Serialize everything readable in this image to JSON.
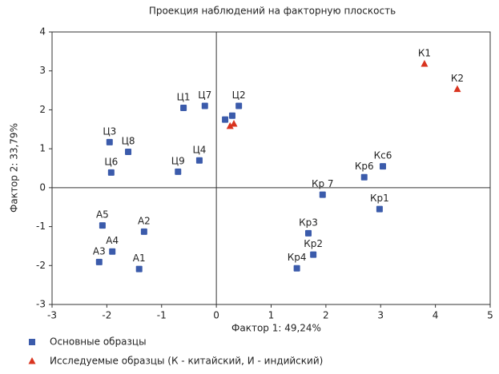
{
  "chart_data": {
    "type": "scatter",
    "title": "Проекция наблюдений на факторную плоскость",
    "x_label": "Фактор 1: 49,24%",
    "y_label": "Фактор 2: 33,79%",
    "xlim": [
      -3,
      5
    ],
    "ylim": [
      -3,
      4
    ],
    "xticks": [
      -3,
      -2,
      -1,
      0,
      1,
      2,
      3,
      4,
      5
    ],
    "yticks": [
      -3,
      -2,
      -1,
      0,
      1,
      2,
      3,
      4
    ],
    "series": [
      {
        "name": "Основные образцы",
        "color": "#3b5bab",
        "marker": "square",
        "x": [
          -0.6,
          -0.21,
          0.41,
          0.16,
          0.29,
          -1.95,
          -1.61,
          -1.92,
          -0.7,
          -0.31,
          2.7,
          3.04,
          1.94,
          2.98,
          1.68,
          1.77,
          1.47,
          -2.08,
          -1.32,
          -1.9,
          -2.14,
          -1.41
        ],
        "values": [
          2.05,
          2.1,
          2.1,
          1.75,
          1.85,
          1.17,
          0.92,
          0.39,
          0.41,
          0.7,
          0.27,
          0.55,
          -0.18,
          -0.55,
          -1.17,
          -1.72,
          -2.07,
          -0.97,
          -1.13,
          -1.64,
          -1.91,
          -2.09
        ],
        "labels": [
          "Ц1",
          "Ц7",
          "Ц2",
          null,
          null,
          "Ц3",
          "Ц8",
          "Ц6",
          "Ц9",
          "Ц4",
          "Кр6",
          "Кс6",
          "Кр 7",
          "Кр1",
          "Кр3",
          "Кр2",
          "Кр4",
          "А5",
          "А2",
          "А4",
          "А3",
          "А1"
        ]
      },
      {
        "name": "Исследуемые образцы (К - китайский, И - индийский)",
        "color": "#d9341f",
        "marker": "triangle",
        "x": [
          3.8,
          4.4,
          0.25,
          0.32
        ],
        "values": [
          3.18,
          2.53,
          1.58,
          1.64
        ],
        "labels": [
          "К1",
          "К2",
          null,
          null
        ]
      }
    ]
  }
}
